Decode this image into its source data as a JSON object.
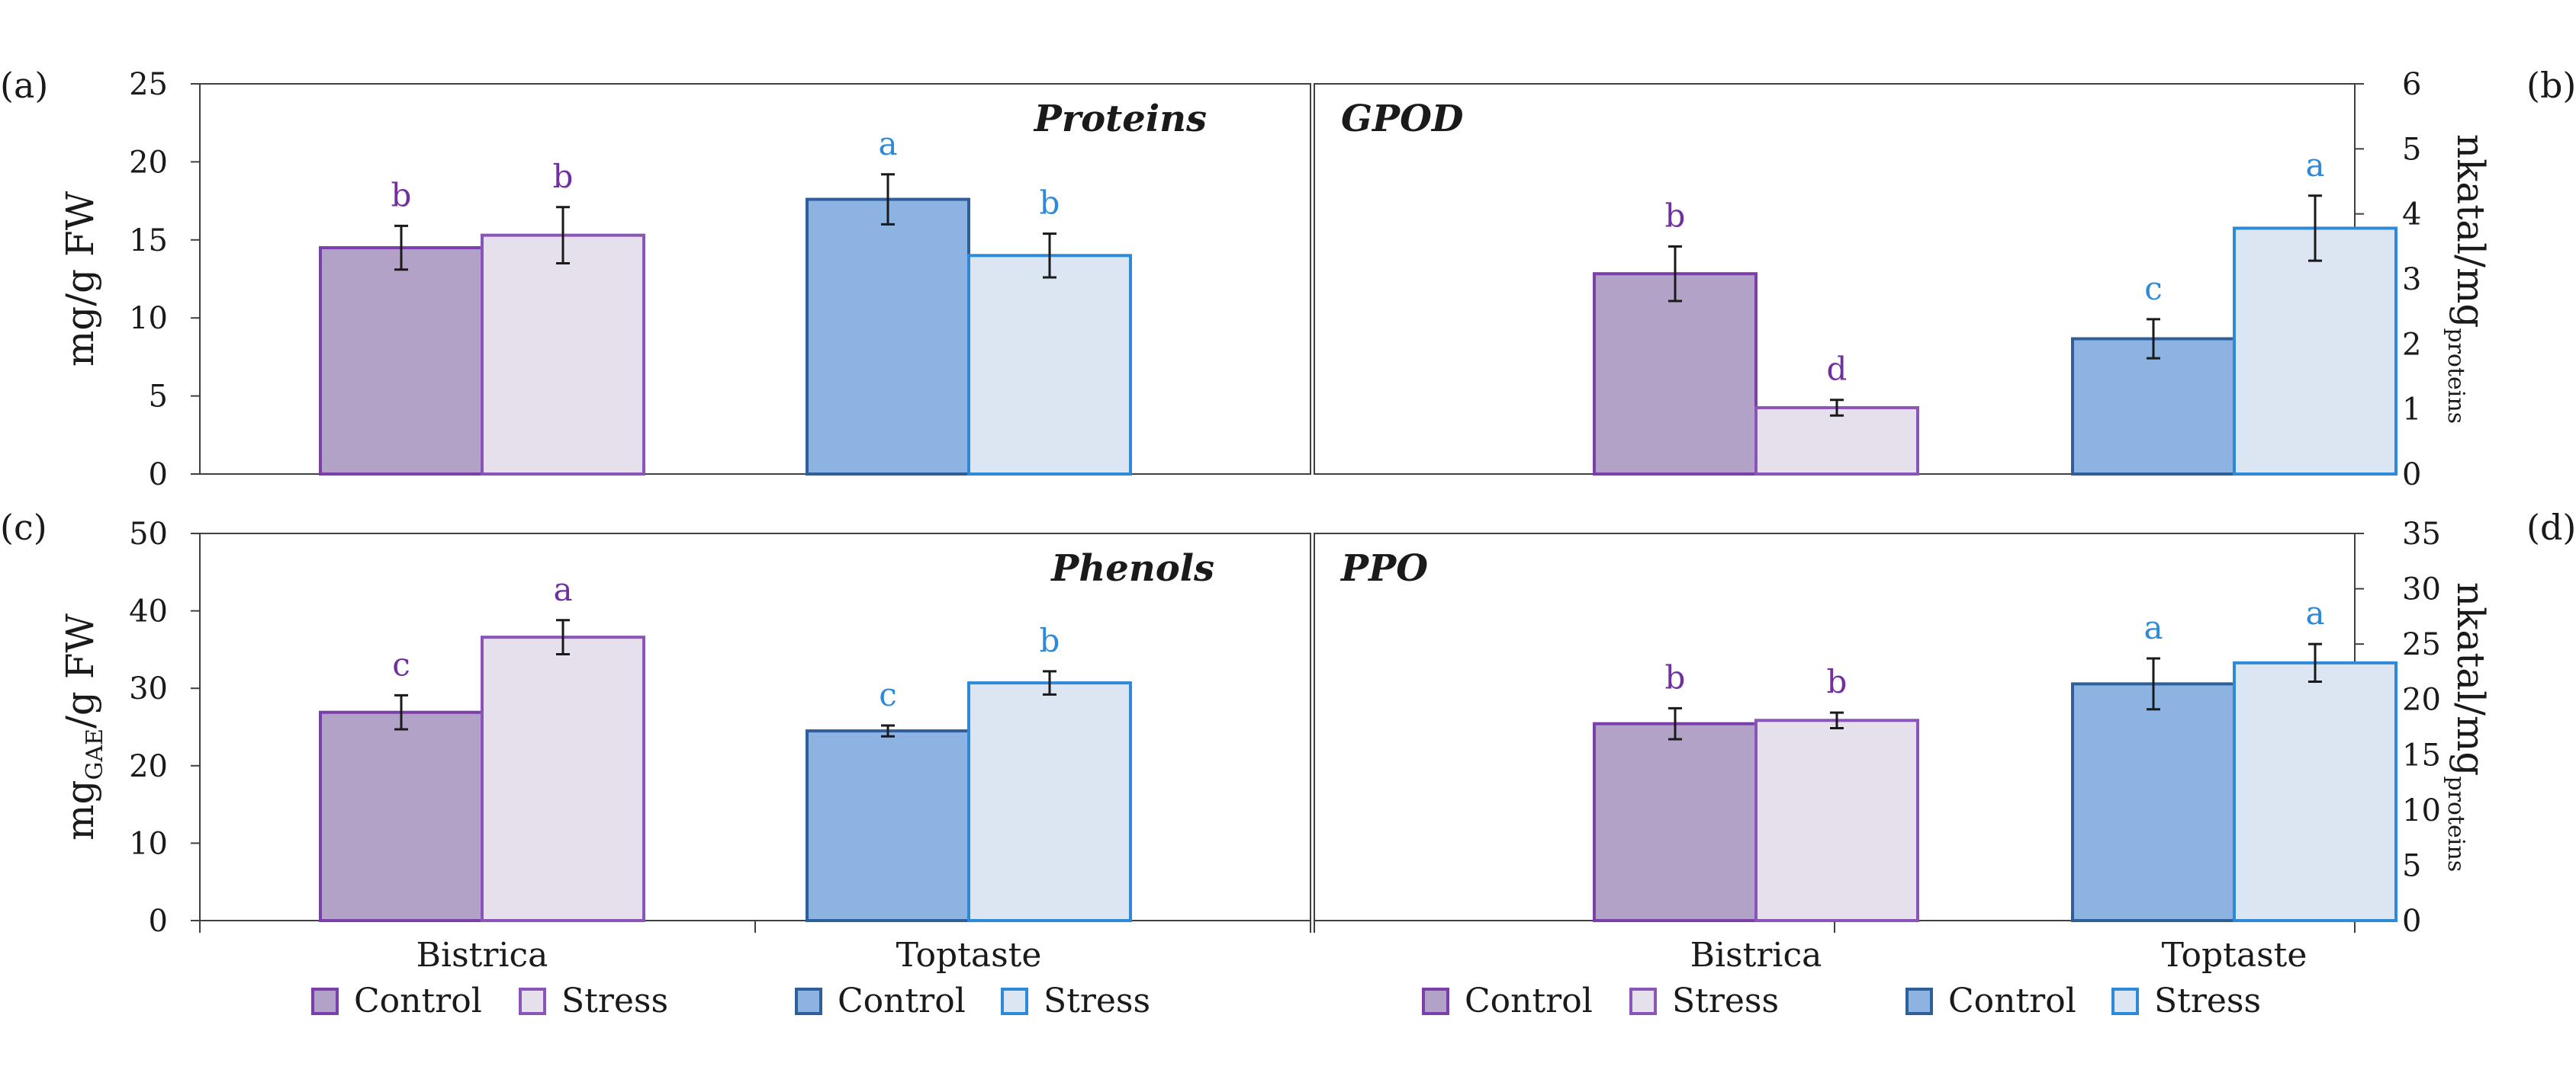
{
  "colors": {
    "bistrica_control_fill": "#b3a2c8",
    "bistrica_control_edge": "#7a3fa8",
    "bistrica_stress_fill": "#e6dfec",
    "bistrica_stress_edge": "#8a55b8",
    "toptaste_control_fill": "#8db3e2",
    "toptaste_control_edge": "#2f5f9a",
    "toptaste_stress_fill": "#dce6f2",
    "toptaste_stress_edge": "#2e8ad8",
    "letter_bistrica": "#7030a0",
    "letter_toptaste": "#2e8ad8",
    "axis": "#404040",
    "error_bar": "#1a1a1a"
  },
  "categories": [
    "Bistrica",
    "Toptaste"
  ],
  "legend": {
    "bistrica": [
      "Control",
      "Stress"
    ],
    "toptaste": [
      "Control",
      "Stress"
    ]
  },
  "chart_data": [
    {
      "type": "bar",
      "panel": "(a)",
      "title": "Proteins",
      "ylabel_main": "mg/g FW",
      "ylabel_sub": "",
      "axis_side": "left",
      "ylim": [
        0,
        25
      ],
      "yticks": [
        0,
        5,
        10,
        15,
        20,
        25
      ],
      "categories": [
        "Bistrica",
        "Toptaste"
      ],
      "series": [
        {
          "name": "Control",
          "values": [
            14.5,
            17.6
          ],
          "errors": [
            1.4,
            1.6
          ],
          "letters": [
            "b",
            "a"
          ]
        },
        {
          "name": "Stress",
          "values": [
            15.3,
            14.0
          ],
          "errors": [
            1.8,
            1.4
          ],
          "letters": [
            "b",
            "b"
          ]
        }
      ]
    },
    {
      "type": "bar",
      "panel": "(b)",
      "title": "GPOD",
      "ylabel_main": "nkatal/mg",
      "ylabel_sub": "proteins",
      "axis_side": "right",
      "ylim": [
        0,
        6
      ],
      "yticks": [
        0,
        1,
        2,
        3,
        4,
        5,
        6
      ],
      "categories": [
        "Bistrica",
        "Toptaste"
      ],
      "series": [
        {
          "name": "Control",
          "values": [
            3.08,
            2.08
          ],
          "errors": [
            0.42,
            0.3
          ],
          "letters": [
            "b",
            "c"
          ]
        },
        {
          "name": "Stress",
          "values": [
            1.02,
            3.78
          ],
          "errors": [
            0.12,
            0.5
          ],
          "letters": [
            "d",
            "a"
          ]
        }
      ]
    },
    {
      "type": "bar",
      "panel": "(c)",
      "title": "Phenols",
      "ylabel_main": "mg",
      "ylabel_sub": "GAE",
      "ylabel_tail": "/g FW",
      "axis_side": "left",
      "ylim": [
        0,
        50
      ],
      "yticks": [
        0,
        10,
        20,
        30,
        40,
        50
      ],
      "categories": [
        "Bistrica",
        "Toptaste"
      ],
      "series": [
        {
          "name": "Control",
          "values": [
            26.9,
            24.5
          ],
          "errors": [
            2.2,
            0.7
          ],
          "letters": [
            "c",
            "c"
          ]
        },
        {
          "name": "Stress",
          "values": [
            36.6,
            30.7
          ],
          "errors": [
            2.2,
            1.5
          ],
          "letters": [
            "a",
            "b"
          ]
        }
      ]
    },
    {
      "type": "bar",
      "panel": "(d)",
      "title": "PPO",
      "ylabel_main": "nkatal/mg",
      "ylabel_sub": "proteins",
      "axis_side": "right",
      "ylim": [
        0,
        35
      ],
      "yticks": [
        0,
        5,
        10,
        15,
        20,
        25,
        30,
        35
      ],
      "categories": [
        "Bistrica",
        "Toptaste"
      ],
      "series": [
        {
          "name": "Control",
          "values": [
            17.8,
            21.4
          ],
          "errors": [
            1.4,
            2.3
          ],
          "letters": [
            "b",
            "a"
          ]
        },
        {
          "name": "Stress",
          "values": [
            18.1,
            23.3
          ],
          "errors": [
            0.7,
            1.7
          ],
          "letters": [
            "b",
            "a"
          ]
        }
      ]
    }
  ]
}
